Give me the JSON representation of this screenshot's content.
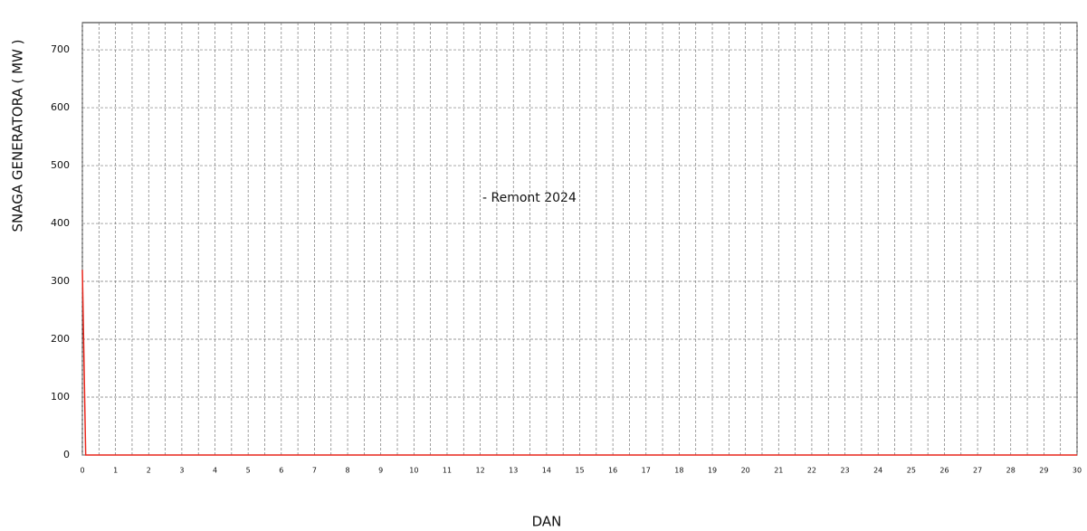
{
  "chart_data": {
    "type": "line",
    "ylabel": "SNAGA GENERATORA ( MW )",
    "xlabel": "DAN",
    "annotation": "- Remont 2024",
    "x": [
      0,
      0.1,
      30
    ],
    "series": [
      {
        "color": "#e8261c",
        "values": [
          320,
          0,
          0
        ]
      }
    ],
    "xlim": [
      0,
      30
    ],
    "xticks": [
      0,
      1,
      2,
      3,
      4,
      5,
      6,
      7,
      8,
      9,
      10,
      11,
      12,
      13,
      14,
      15,
      16,
      17,
      18,
      19,
      20,
      21,
      22,
      23,
      24,
      25,
      26,
      27,
      28,
      29,
      30
    ],
    "ylim": [
      0,
      747
    ],
    "yticks": [
      0,
      100,
      200,
      300,
      400,
      500,
      600,
      700
    ],
    "grid": true,
    "x_minor_grid": true
  }
}
